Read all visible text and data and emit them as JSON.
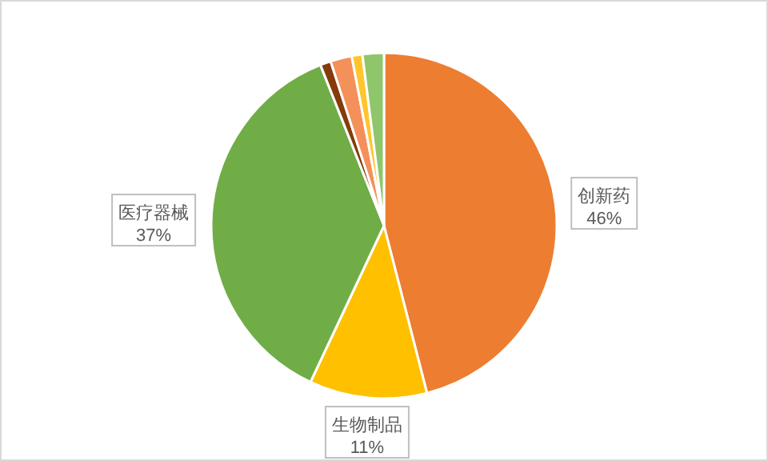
{
  "chart_data": {
    "type": "pie",
    "categories": [
      "创新药",
      "生物制品",
      "医疗器械",
      null,
      null,
      null,
      null
    ],
    "values": [
      46,
      11,
      37,
      1,
      2,
      1,
      2
    ],
    "colors": [
      "#ed7d31",
      "#ffc000",
      "#70ad47",
      "#843c0c",
      "#f4915a",
      "#ffc52a",
      "#8fc66b"
    ],
    "value_labels": [
      "46%",
      "11%",
      "37%",
      null,
      null,
      null,
      null
    ]
  }
}
